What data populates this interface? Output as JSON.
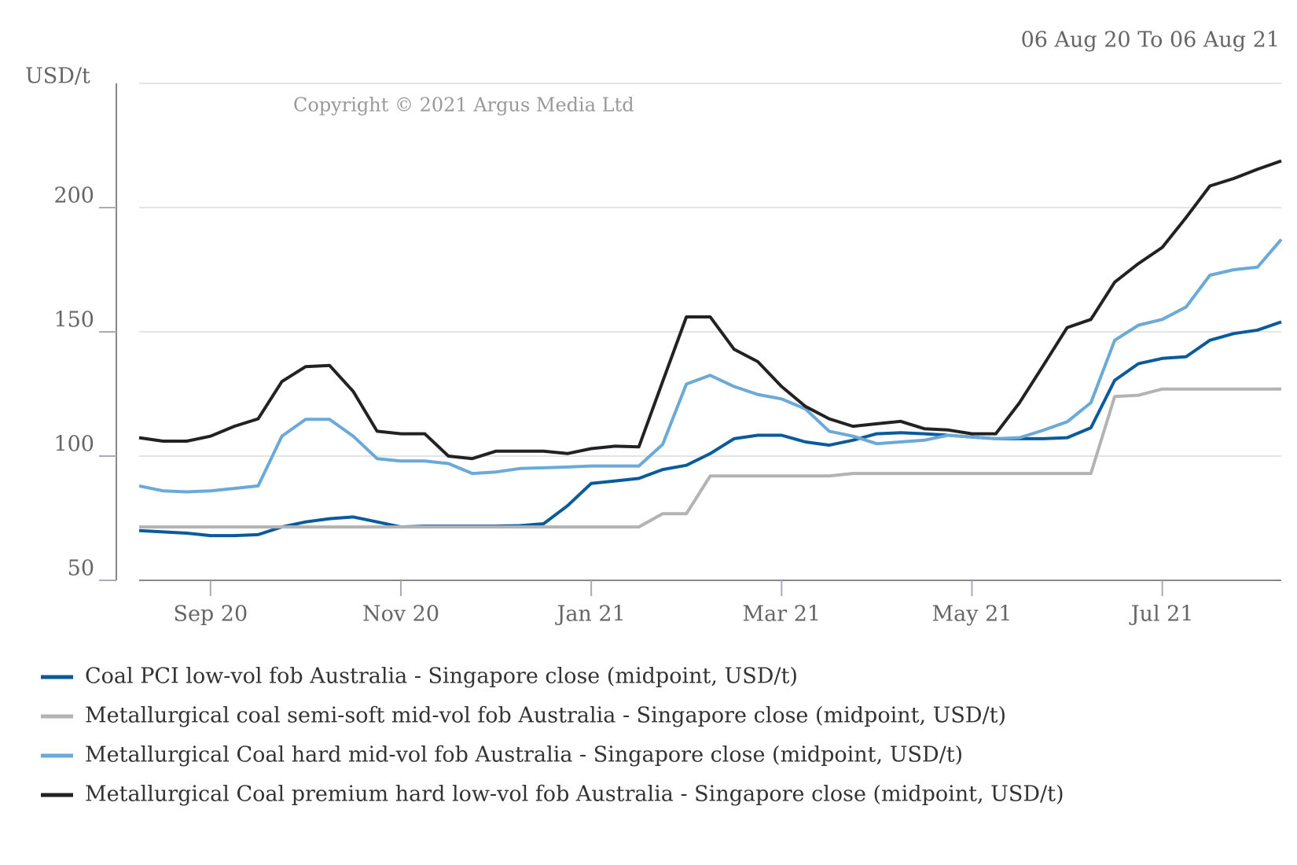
{
  "chart_data": {
    "type": "line",
    "date_range": "06 Aug 20 To 06 Aug 21",
    "y_label": "USD/t",
    "annotation": "Copyright © 2021 Argus Media Ltd",
    "categories": [
      null,
      null,
      null,
      "Sep 20",
      null,
      null,
      null,
      null,
      null,
      null,
      null,
      "Nov 20",
      null,
      null,
      null,
      null,
      null,
      null,
      null,
      "Jan 21",
      null,
      null,
      null,
      null,
      null,
      null,
      null,
      "Mar 21",
      null,
      null,
      null,
      null,
      null,
      null,
      null,
      "May 21",
      null,
      null,
      null,
      null,
      null,
      null,
      null,
      "Jul 21",
      null,
      null,
      null,
      null,
      null
    ],
    "ylim": [
      50,
      250
    ],
    "yticks": [
      50,
      100,
      150,
      200
    ],
    "grid": true,
    "legend": "bottom",
    "series": [
      {
        "name": "Coal PCI low-vol fob Australia - Singapore close (midpoint, USD/t)",
        "color": "#0b5a9c",
        "values": [
          70,
          69.5,
          69,
          68,
          68,
          68.4,
          71.5,
          73.5,
          74.8,
          75.5,
          73.5,
          71.5,
          71.8,
          71.8,
          71.8,
          71.8,
          72,
          72.8,
          80,
          89,
          90,
          91,
          94.6,
          96.3,
          101,
          107,
          108.4,
          108.4,
          105.7,
          104.4,
          106.4,
          109,
          109.4,
          109,
          108.4,
          107.7,
          107,
          107,
          107,
          107.4,
          111.4,
          130.5,
          137.2,
          139.3,
          140,
          146.6,
          149.3,
          150.7,
          154
        ]
      },
      {
        "name": "Metallurgical coal semi-soft mid-vol fob Australia - Singapore close (midpoint, USD/t)",
        "color": "#b3b3b3",
        "values": [
          71.5,
          71.5,
          71.5,
          71.5,
          71.5,
          71.5,
          71.5,
          71.5,
          71.5,
          71.5,
          71.5,
          71.5,
          71.5,
          71.5,
          71.5,
          71.5,
          71.5,
          71.5,
          71.5,
          71.5,
          71.5,
          71.5,
          76.8,
          76.8,
          92,
          92,
          92,
          92,
          92,
          92,
          93,
          93,
          93,
          93,
          93,
          93,
          93,
          93,
          93,
          93,
          93,
          124,
          124.5,
          127,
          127,
          127,
          127,
          127,
          127
        ]
      },
      {
        "name": "Metallurgical Coal hard mid-vol fob Australia - Singapore close (midpoint, USD/t)",
        "color": "#6aa9d8",
        "values": [
          88,
          86,
          85.6,
          86,
          87,
          88,
          108,
          114.8,
          114.8,
          108,
          99,
          98,
          98,
          97,
          93,
          93.6,
          95,
          95.3,
          95.6,
          96,
          96,
          96,
          104.7,
          129,
          132.5,
          128,
          124.8,
          123,
          119,
          110,
          108,
          105,
          105.7,
          106.4,
          108.4,
          107.7,
          107,
          107.4,
          110.4,
          113.8,
          121.5,
          146.6,
          152.7,
          155,
          160,
          172.8,
          175,
          176,
          187.2
        ]
      },
      {
        "name": "Metallurgical Coal premium hard low-vol fob Australia - Singapore close (midpoint, USD/t)",
        "color": "#222222",
        "values": [
          107.4,
          106,
          106,
          108,
          112,
          115,
          130,
          136,
          136.5,
          126,
          110,
          109,
          109,
          100,
          99,
          102,
          102,
          102,
          101,
          103,
          104,
          103.7,
          130,
          156,
          156,
          143,
          138,
          128,
          120,
          115,
          112,
          113,
          114,
          111,
          110.5,
          109,
          109,
          121.5,
          136.5,
          151.7,
          155,
          170,
          177.5,
          184,
          196,
          208.7,
          211.7,
          215.4,
          218.8
        ]
      }
    ]
  }
}
